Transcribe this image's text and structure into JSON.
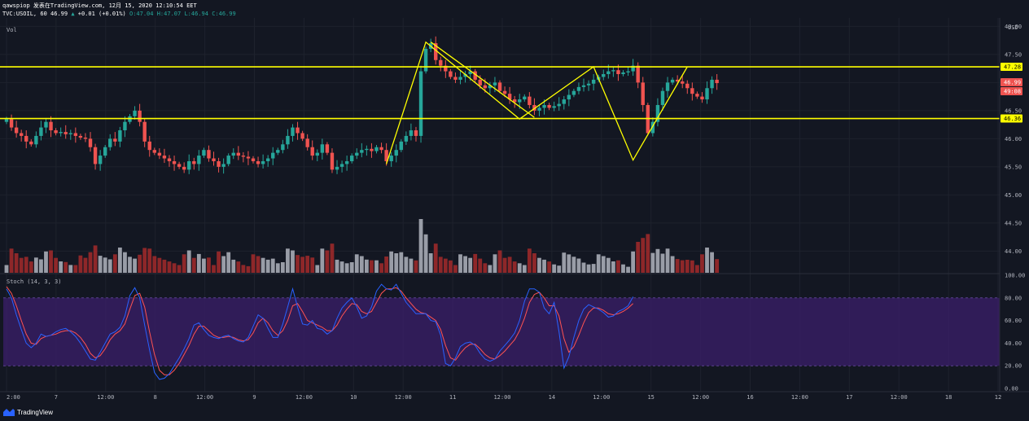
{
  "header": {
    "line1": "qawspiop 发表在TradingView.com, 12月 15, 2020 12:10:54 EET",
    "symbol": "TVC:USOIL, 60",
    "last": "46.99",
    "change_arrow": "▲",
    "change": "+0.01 (+0.01%)",
    "ohlc": {
      "o": "O:47.04",
      "h": "H:47.07",
      "l": "L:46.94",
      "c": "C:46.99"
    }
  },
  "currency": "USD",
  "vol_label": "Vol",
  "stoch_label": "Stoch (14, 3, 3)",
  "footer_brand": "TradingView",
  "colors": {
    "bg": "#131722",
    "grid": "#1e222d",
    "up": "#26a69a",
    "down": "#ef5350",
    "vol_up": "#b2b5be",
    "vol_down": "#a52a2a",
    "stoch_k": "#2962ff",
    "stoch_d": "#ff5252",
    "stoch_band": "#3b1f6b",
    "annotation": "#ffff00"
  },
  "price_badges": [
    {
      "text": "47.28",
      "bg": "#ffff00",
      "fg": "#000000"
    },
    {
      "text": "46.99",
      "bg": "#ef5350",
      "fg": "#ffffff"
    },
    {
      "text": "49:08",
      "bg": "#ef5350",
      "fg": "#ffffff"
    },
    {
      "text": "46.36",
      "bg": "#ffff00",
      "fg": "#000000"
    }
  ],
  "chart_data": {
    "type": "candlestick",
    "price_axis": {
      "ticks": [
        "48.00",
        "47.50",
        "47.00",
        "46.50",
        "46.00",
        "45.50",
        "45.00",
        "44.50",
        "44.00"
      ],
      "range": [
        43.6,
        48.15
      ]
    },
    "stoch_axis": {
      "ticks": [
        "100.00",
        "80.00",
        "60.00",
        "40.00",
        "20.00",
        "0.00"
      ],
      "band": [
        20,
        80
      ],
      "range": [
        0,
        100
      ]
    },
    "time_axis": {
      "ticks": [
        "2:00",
        "7",
        "12:00",
        "8",
        "12:00",
        "9",
        "12:00",
        "10",
        "12:00",
        "11",
        "12:00",
        "14",
        "12:00",
        "15",
        "12:00",
        "16",
        "12:00",
        "17",
        "12:00",
        "18",
        "12"
      ]
    },
    "horizontal_lines": [
      47.28,
      46.36
    ],
    "zigzag_anchor_bars": [
      78,
      86,
      105,
      107,
      119,
      127,
      139
    ],
    "closes": [
      46.35,
      46.2,
      46.1,
      46.05,
      45.95,
      45.9,
      46.05,
      46.2,
      46.3,
      46.15,
      46.1,
      46.12,
      46.08,
      46.1,
      46.05,
      46.02,
      46.0,
      45.85,
      45.55,
      45.7,
      45.85,
      46.0,
      45.95,
      46.15,
      46.3,
      46.4,
      46.5,
      46.3,
      45.95,
      45.8,
      45.75,
      45.7,
      45.65,
      45.6,
      45.55,
      45.5,
      45.45,
      45.6,
      45.55,
      45.7,
      45.8,
      45.65,
      45.6,
      45.5,
      45.55,
      45.7,
      45.75,
      45.7,
      45.68,
      45.65,
      45.6,
      45.55,
      45.6,
      45.65,
      45.75,
      45.8,
      45.9,
      46.05,
      46.2,
      46.1,
      46.0,
      45.85,
      45.7,
      45.75,
      45.9,
      45.75,
      45.45,
      45.5,
      45.55,
      45.6,
      45.7,
      45.75,
      45.8,
      45.82,
      45.78,
      45.85,
      45.8,
      45.6,
      45.7,
      45.8,
      45.95,
      46.05,
      46.15,
      46.05,
      47.2,
      47.6,
      47.7,
      47.4,
      47.3,
      47.2,
      47.1,
      47.05,
      47.1,
      47.15,
      47.2,
      47.05,
      46.95,
      46.9,
      46.95,
      47.0,
      46.85,
      46.8,
      46.7,
      46.65,
      46.7,
      46.75,
      46.6,
      46.5,
      46.55,
      46.6,
      46.55,
      46.58,
      46.62,
      46.7,
      46.78,
      46.85,
      46.92,
      46.95,
      46.98,
      47.05,
      47.1,
      47.15,
      47.2,
      47.22,
      47.15,
      47.18,
      47.2,
      47.3,
      47.0,
      46.6,
      46.1,
      46.3,
      46.6,
      46.85,
      47.0,
      47.05,
      47.02,
      46.98,
      46.9,
      46.8,
      46.75,
      46.7,
      46.9,
      47.05,
      46.99
    ],
    "stoch_k": [
      88,
      80,
      65,
      52,
      40,
      36,
      40,
      48,
      46,
      47,
      50,
      52,
      53,
      50,
      46,
      40,
      33,
      26,
      25,
      32,
      40,
      48,
      50,
      54,
      64,
      82,
      89,
      80,
      56,
      34,
      14,
      8,
      9,
      13,
      20,
      27,
      35,
      44,
      56,
      58,
      52,
      47,
      45,
      44,
      46,
      47,
      44,
      42,
      41,
      45,
      55,
      65,
      62,
      53,
      45,
      45,
      57,
      72,
      88,
      72,
      57,
      56,
      60,
      53,
      52,
      48,
      51,
      62,
      71,
      76,
      80,
      72,
      62,
      64,
      72,
      86,
      92,
      88,
      87,
      92,
      84,
      76,
      71,
      66,
      66,
      66,
      60,
      59,
      47,
      22,
      20,
      27,
      37,
      40,
      41,
      38,
      31,
      26,
      24,
      26,
      33,
      38,
      43,
      49,
      60,
      77,
      88,
      88,
      85,
      71,
      66,
      76,
      50,
      18,
      28,
      45,
      60,
      70,
      74,
      72,
      70,
      67,
      63,
      64,
      68,
      70,
      73,
      81
    ],
    "stoch_d": [
      90,
      84,
      73,
      60,
      48,
      40,
      39,
      44,
      46,
      47,
      48,
      50,
      51,
      51,
      49,
      45,
      39,
      31,
      27,
      29,
      35,
      43,
      48,
      51,
      57,
      70,
      82,
      84,
      72,
      50,
      30,
      16,
      12,
      12,
      16,
      22,
      30,
      38,
      48,
      55,
      55,
      51,
      47,
      45,
      45,
      46,
      45,
      43,
      42,
      43,
      49,
      58,
      62,
      58,
      51,
      47,
      51,
      60,
      73,
      75,
      68,
      60,
      58,
      56,
      54,
      51,
      51,
      56,
      64,
      70,
      75,
      74,
      68,
      66,
      68,
      76,
      84,
      88,
      88,
      89,
      86,
      80,
      75,
      70,
      67,
      66,
      63,
      60,
      52,
      38,
      27,
      25,
      31,
      36,
      39,
      39,
      35,
      30,
      27,
      26,
      29,
      33,
      38,
      43,
      51,
      62,
      76,
      83,
      85,
      80,
      73,
      73,
      64,
      44,
      32,
      37,
      47,
      58,
      67,
      71,
      71,
      69,
      66,
      65,
      66,
      68,
      71,
      75
    ]
  }
}
